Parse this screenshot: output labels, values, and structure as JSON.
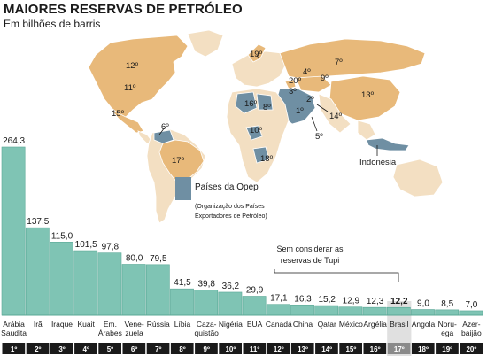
{
  "header": {
    "title": "MAIORES RESERVAS DE PETRÓLEO",
    "subtitle": "Em bilhões de barris"
  },
  "map": {
    "legend_title": "Países da Opep",
    "legend_sub_1": "(Organização dos Países",
    "legend_sub_2": "Exportadores de Petróleo)",
    "indonesia_label": "Indonésia",
    "rank_labels": [
      "12º",
      "11º",
      "15º",
      "6º",
      "17º",
      "19º",
      "20º",
      "4º",
      "7º",
      "9º",
      "16º",
      "8º",
      "3º",
      "2º",
      "1º",
      "13º",
      "14º",
      "5º",
      "10º",
      "18º"
    ],
    "colors": {
      "land": "#f3dfc2",
      "reserve": "#e8b97a",
      "opec": "#6f8fa3",
      "border": "#ffffff",
      "ocean": "#ffffff"
    }
  },
  "note": {
    "line1": "Sem considerar as",
    "line2": "reservas de Tupi"
  },
  "chart_data": {
    "type": "bar",
    "unit": "Em bilhões de barris",
    "categories": [
      "Arábia Saudita",
      "Irã",
      "Iraque",
      "Kuait",
      "Em. Árabes",
      "Venezuela",
      "Rússia",
      "Líbia",
      "Cazaquistão",
      "Nigéria",
      "EUA",
      "Canadá",
      "China",
      "Qatar",
      "México",
      "Argélia",
      "Brasil",
      "Angola",
      "Noruega",
      "Azerbaijão"
    ],
    "category_lines": [
      [
        "Arábia",
        "Saudita"
      ],
      [
        "Irã"
      ],
      [
        "Iraque"
      ],
      [
        "Kuait"
      ],
      [
        "Em.",
        "Árabes"
      ],
      [
        "Vene-",
        "zuela"
      ],
      [
        "Rússia"
      ],
      [
        "Líbia"
      ],
      [
        "Caza-",
        "quistão"
      ],
      [
        "Nigéria"
      ],
      [
        "EUA"
      ],
      [
        "Canadá"
      ],
      [
        "China"
      ],
      [
        "Qatar"
      ],
      [
        "México"
      ],
      [
        "Argélia"
      ],
      [
        "Brasil"
      ],
      [
        "Angola"
      ],
      [
        "Noru-",
        "ega"
      ],
      [
        "Azer-",
        "baijão"
      ]
    ],
    "values": [
      264.3,
      137.5,
      115.0,
      101.5,
      97.8,
      80.0,
      79.5,
      41.5,
      39.8,
      36.2,
      29.9,
      17.1,
      16.3,
      15.2,
      12.9,
      12.3,
      12.2,
      9.0,
      8.5,
      7.0
    ],
    "value_labels": [
      "264,3",
      "137,5",
      "115,0",
      "101,5",
      "97,8",
      "80,0",
      "79,5",
      "41,5",
      "39,8",
      "36,2",
      "29,9",
      "17,1",
      "16,3",
      "15,2",
      "12,9",
      "12,3",
      "12,2",
      "9,0",
      "8,5",
      "7,0"
    ],
    "ranks": [
      "1º",
      "2º",
      "3º",
      "4º",
      "5º",
      "6º",
      "7º",
      "8º",
      "9º",
      "10º",
      "11º",
      "12º",
      "13º",
      "14º",
      "15º",
      "16º",
      "17º",
      "18º",
      "19º",
      "20º"
    ],
    "highlight": "Brasil",
    "colors": {
      "bar": "#7fc4b4",
      "bar_edge": "#5aa896",
      "rank_bg": "#1a1a1a",
      "highlight_rank_bg": "#8a8a8a",
      "highlight_col": "#e0e0e0"
    },
    "ylim": [
      0,
      264.3
    ]
  }
}
